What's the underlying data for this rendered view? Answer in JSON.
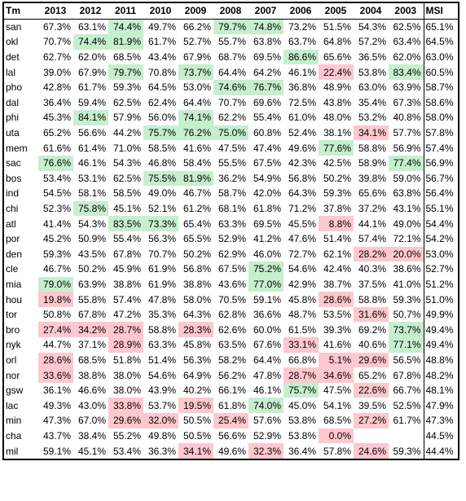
{
  "headers": [
    "Tm",
    "2013",
    "2012",
    "2011",
    "2010",
    "2009",
    "2008",
    "2007",
    "2006",
    "2005",
    "2004",
    "2003",
    "MSI"
  ],
  "colors": {
    "good": "#c6efce",
    "bad": "#ffc7ce",
    "border": "#000000"
  },
  "rows": [
    {
      "team": "san",
      "values": [
        "67.3%",
        "63.1%",
        "74.4%",
        "49.7%",
        "66.2%",
        "79.7%",
        "74.8%",
        "73.2%",
        "51.5%",
        "54.3%",
        "62.5%"
      ],
      "hl": [
        "",
        "",
        "g",
        "",
        "",
        "g",
        "g",
        "",
        "",
        "",
        ""
      ],
      "msi": "65.1%"
    },
    {
      "team": "okl",
      "values": [
        "70.7%",
        "74.4%",
        "81.9%",
        "61.7%",
        "52.7%",
        "55.7%",
        "63.8%",
        "63.7%",
        "64.8%",
        "57.2%",
        "63.4%"
      ],
      "hl": [
        "",
        "g",
        "g",
        "",
        "",
        "",
        "",
        "",
        "",
        "",
        ""
      ],
      "msi": "64.5%"
    },
    {
      "team": "det",
      "values": [
        "62.7%",
        "62.0%",
        "68.5%",
        "43.4%",
        "67.9%",
        "68.7%",
        "69.5%",
        "86.6%",
        "65.6%",
        "36.5%",
        "62.0%"
      ],
      "hl": [
        "",
        "",
        "",
        "",
        "",
        "",
        "",
        "g",
        "",
        "",
        ""
      ],
      "msi": "63.0%"
    },
    {
      "team": "lal",
      "values": [
        "39.0%",
        "67.9%",
        "79.7%",
        "70.8%",
        "73.7%",
        "64.4%",
        "64.2%",
        "46.1%",
        "22.4%",
        "53.8%",
        "83.4%"
      ],
      "hl": [
        "",
        "",
        "g",
        "",
        "g",
        "",
        "",
        "",
        "r",
        "",
        "g"
      ],
      "msi": "60.5%"
    },
    {
      "team": "pho",
      "values": [
        "42.8%",
        "61.7%",
        "59.3%",
        "64.5%",
        "53.0%",
        "74.6%",
        "76.7%",
        "36.8%",
        "48.9%",
        "63.0%",
        "63.9%"
      ],
      "hl": [
        "",
        "",
        "",
        "",
        "",
        "g",
        "g",
        "",
        "",
        "",
        ""
      ],
      "msi": "58.7%"
    },
    {
      "team": "dal",
      "values": [
        "36.4%",
        "59.4%",
        "62.5%",
        "62.4%",
        "64.4%",
        "70.7%",
        "69.6%",
        "72.5%",
        "43.8%",
        "35.4%",
        "67.3%"
      ],
      "hl": [
        "",
        "",
        "",
        "",
        "",
        "",
        "",
        "",
        "",
        "",
        ""
      ],
      "msi": "58.6%"
    },
    {
      "team": "phi",
      "values": [
        "45.3%",
        "84.1%",
        "57.9%",
        "56.0%",
        "74.1%",
        "62.2%",
        "55.4%",
        "61.0%",
        "48.0%",
        "53.2%",
        "40.8%"
      ],
      "hl": [
        "",
        "g",
        "",
        "",
        "g",
        "",
        "",
        "",
        "",
        "",
        ""
      ],
      "msi": "58.0%"
    },
    {
      "team": "uta",
      "values": [
        "65.2%",
        "56.6%",
        "44.2%",
        "75.7%",
        "76.2%",
        "75.0%",
        "60.8%",
        "52.4%",
        "38.1%",
        "34.1%",
        "57.7%"
      ],
      "hl": [
        "",
        "",
        "",
        "g",
        "g",
        "g",
        "",
        "",
        "",
        "r",
        ""
      ],
      "msi": "57.8%"
    },
    {
      "team": "mem",
      "values": [
        "61.6%",
        "61.4%",
        "71.0%",
        "58.5%",
        "41.6%",
        "47.5%",
        "47.4%",
        "49.6%",
        "77.6%",
        "58.8%",
        "56.9%"
      ],
      "hl": [
        "",
        "",
        "",
        "",
        "",
        "",
        "",
        "",
        "g",
        "",
        ""
      ],
      "msi": "57.4%"
    },
    {
      "team": "sac",
      "values": [
        "76.6%",
        "46.1%",
        "54.3%",
        "46.8%",
        "58.4%",
        "55.5%",
        "67.5%",
        "42.3%",
        "42.5%",
        "58.9%",
        "77.4%"
      ],
      "hl": [
        "g",
        "",
        "",
        "",
        "",
        "",
        "",
        "",
        "",
        "",
        "g"
      ],
      "msi": "56.9%"
    },
    {
      "team": "bos",
      "values": [
        "53.4%",
        "53.1%",
        "62.5%",
        "75.5%",
        "81.9%",
        "36.2%",
        "54.9%",
        "56.8%",
        "50.2%",
        "39.8%",
        "59.0%"
      ],
      "hl": [
        "",
        "",
        "",
        "g",
        "g",
        "",
        "",
        "",
        "",
        "",
        ""
      ],
      "msi": "56.7%"
    },
    {
      "team": "ind",
      "values": [
        "54.5%",
        "58.1%",
        "58.5%",
        "49.0%",
        "46.7%",
        "58.7%",
        "42.0%",
        "64.3%",
        "59.3%",
        "65.6%",
        "63.8%"
      ],
      "hl": [
        "",
        "",
        "",
        "",
        "",
        "",
        "",
        "",
        "",
        "",
        ""
      ],
      "msi": "56.4%"
    },
    {
      "team": "chi",
      "values": [
        "52.3%",
        "75.8%",
        "45.1%",
        "52.1%",
        "61.2%",
        "68.1%",
        "61.8%",
        "71.2%",
        "37.8%",
        "37.2%",
        "43.1%"
      ],
      "hl": [
        "",
        "g",
        "",
        "",
        "",
        "",
        "",
        "",
        "",
        "",
        ""
      ],
      "msi": "55.1%"
    },
    {
      "team": "atl",
      "values": [
        "41.4%",
        "54.3%",
        "83.5%",
        "73.3%",
        "65.4%",
        "63.3%",
        "69.5%",
        "45.5%",
        "8.8%",
        "44.1%",
        "49.0%"
      ],
      "hl": [
        "",
        "",
        "g",
        "g",
        "",
        "",
        "",
        "",
        "r",
        "",
        ""
      ],
      "msi": "54.4%"
    },
    {
      "team": "por",
      "values": [
        "45.2%",
        "50.9%",
        "55.4%",
        "56.3%",
        "65.5%",
        "52.9%",
        "41.2%",
        "47.6%",
        "51.4%",
        "57.4%",
        "72.1%"
      ],
      "hl": [
        "",
        "",
        "",
        "",
        "",
        "",
        "",
        "",
        "",
        "",
        ""
      ],
      "msi": "54.2%"
    },
    {
      "team": "den",
      "values": [
        "59.3%",
        "43.5%",
        "67.8%",
        "70.7%",
        "50.2%",
        "62.9%",
        "46.0%",
        "72.7%",
        "62.1%",
        "28.2%",
        "20.0%"
      ],
      "hl": [
        "",
        "",
        "",
        "",
        "",
        "",
        "",
        "",
        "",
        "r",
        "r"
      ],
      "msi": "53.0%"
    },
    {
      "team": "cle",
      "values": [
        "46.7%",
        "50.2%",
        "45.9%",
        "61.9%",
        "56.8%",
        "67.5%",
        "75.2%",
        "54.6%",
        "42.4%",
        "40.3%",
        "38.6%"
      ],
      "hl": [
        "",
        "",
        "",
        "",
        "",
        "",
        "g",
        "",
        "",
        "",
        ""
      ],
      "msi": "52.7%"
    },
    {
      "team": "mia",
      "values": [
        "79.0%",
        "63.9%",
        "38.8%",
        "61.9%",
        "38.8%",
        "43.6%",
        "77.0%",
        "42.9%",
        "38.7%",
        "37.5%",
        "41.0%"
      ],
      "hl": [
        "g",
        "",
        "",
        "",
        "",
        "",
        "g",
        "",
        "",
        "",
        ""
      ],
      "msi": "51.2%"
    },
    {
      "team": "hou",
      "values": [
        "19.8%",
        "55.8%",
        "57.4%",
        "47.8%",
        "58.0%",
        "70.5%",
        "59.1%",
        "45.8%",
        "28.6%",
        "58.8%",
        "59.3%"
      ],
      "hl": [
        "r",
        "",
        "",
        "",
        "",
        "",
        "",
        "",
        "r",
        "",
        ""
      ],
      "msi": "51.0%"
    },
    {
      "team": "tor",
      "values": [
        "50.8%",
        "67.8%",
        "47.2%",
        "35.3%",
        "64.3%",
        "62.8%",
        "36.6%",
        "48.7%",
        "53.5%",
        "31.6%",
        "50.7%"
      ],
      "hl": [
        "",
        "",
        "",
        "",
        "",
        "",
        "",
        "",
        "",
        "r",
        ""
      ],
      "msi": "49.9%"
    },
    {
      "team": "bro",
      "values": [
        "27.4%",
        "34.2%",
        "28.7%",
        "58.8%",
        "28.3%",
        "62.6%",
        "60.0%",
        "61.5%",
        "39.3%",
        "69.2%",
        "73.7%"
      ],
      "hl": [
        "r",
        "r",
        "r",
        "",
        "r",
        "",
        "",
        "",
        "",
        "",
        "g"
      ],
      "msi": "49.4%"
    },
    {
      "team": "nyk",
      "values": [
        "44.7%",
        "37.1%",
        "28.9%",
        "63.3%",
        "45.8%",
        "63.5%",
        "67.6%",
        "33.1%",
        "41.6%",
        "40.6%",
        "77.1%"
      ],
      "hl": [
        "",
        "",
        "r",
        "",
        "",
        "",
        "",
        "r",
        "",
        "",
        "g"
      ],
      "msi": "49.4%"
    },
    {
      "team": "orl",
      "values": [
        "28.6%",
        "68.5%",
        "51.8%",
        "51.4%",
        "56.3%",
        "58.2%",
        "64.4%",
        "66.8%",
        "5.1%",
        "29.6%",
        "56.5%"
      ],
      "hl": [
        "r",
        "",
        "",
        "",
        "",
        "",
        "",
        "",
        "r",
        "r",
        ""
      ],
      "msi": "48.8%"
    },
    {
      "team": "nor",
      "values": [
        "33.6%",
        "38.8%",
        "38.0%",
        "54.6%",
        "64.9%",
        "56.2%",
        "47.8%",
        "28.7%",
        "34.6%",
        "65.2%",
        "67.8%"
      ],
      "hl": [
        "r",
        "",
        "",
        "",
        "",
        "",
        "",
        "r",
        "r",
        "",
        ""
      ],
      "msi": "48.2%"
    },
    {
      "team": "gsw",
      "values": [
        "36.1%",
        "46.6%",
        "38.0%",
        "43.9%",
        "40.2%",
        "66.1%",
        "46.1%",
        "75.7%",
        "47.5%",
        "22.6%",
        "66.7%"
      ],
      "hl": [
        "",
        "",
        "",
        "",
        "",
        "",
        "",
        "g",
        "",
        "r",
        ""
      ],
      "msi": "48.1%"
    },
    {
      "team": "lac",
      "values": [
        "49.3%",
        "43.0%",
        "33.8%",
        "53.7%",
        "19.5%",
        "61.8%",
        "74.0%",
        "45.0%",
        "54.1%",
        "39.5%",
        "52.5%"
      ],
      "hl": [
        "",
        "",
        "r",
        "",
        "r",
        "",
        "g",
        "",
        "",
        "",
        ""
      ],
      "msi": "47.9%"
    },
    {
      "team": "min",
      "values": [
        "47.3%",
        "67.0%",
        "29.6%",
        "32.0%",
        "50.5%",
        "25.4%",
        "57.6%",
        "53.8%",
        "68.5%",
        "27.2%",
        "61.7%"
      ],
      "hl": [
        "",
        "",
        "r",
        "r",
        "",
        "r",
        "",
        "",
        "",
        "r",
        ""
      ],
      "msi": "47.3%"
    },
    {
      "team": "cha",
      "values": [
        "43.7%",
        "38.4%",
        "55.2%",
        "49.8%",
        "50.5%",
        "56.6%",
        "52.9%",
        "53.8%",
        "0.0%",
        "",
        ""
      ],
      "hl": [
        "",
        "",
        "",
        "",
        "",
        "",
        "",
        "",
        "r",
        "",
        ""
      ],
      "msi": "44.5%"
    },
    {
      "team": "mil",
      "values": [
        "59.1%",
        "45.1%",
        "53.4%",
        "36.3%",
        "34.1%",
        "49.6%",
        "32.3%",
        "36.4%",
        "57.8%",
        "24.6%",
        "59.3%"
      ],
      "hl": [
        "",
        "",
        "",
        "",
        "r",
        "",
        "r",
        "",
        "",
        "r",
        ""
      ],
      "msi": "44.4%"
    }
  ]
}
